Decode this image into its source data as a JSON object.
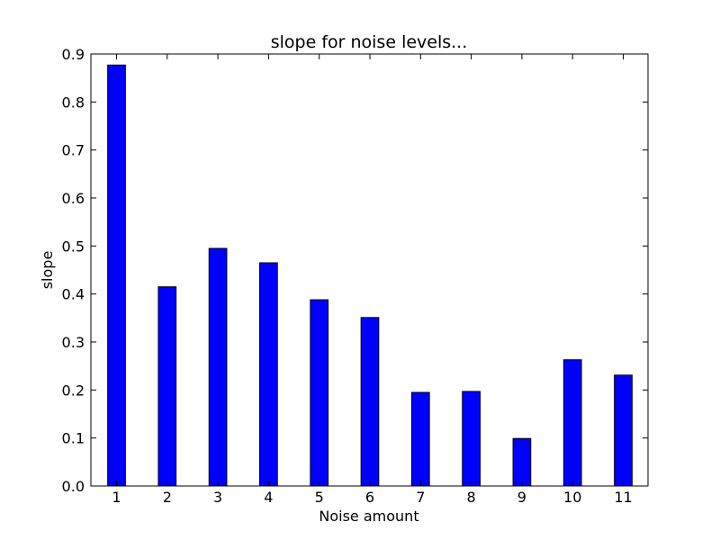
{
  "chart_data": {
    "type": "bar",
    "title": "slope for noise levels...",
    "xlabel": "Noise amount",
    "ylabel": "slope",
    "categories": [
      "1",
      "2",
      "3",
      "4",
      "5",
      "6",
      "7",
      "8",
      "9",
      "10",
      "11"
    ],
    "values": [
      0.877,
      0.415,
      0.495,
      0.465,
      0.388,
      0.351,
      0.195,
      0.197,
      0.099,
      0.263,
      0.231
    ],
    "ylim": [
      0,
      0.9
    ],
    "yticks": [
      "0.0",
      "0.1",
      "0.2",
      "0.3",
      "0.4",
      "0.5",
      "0.6",
      "0.7",
      "0.8",
      "0.9"
    ],
    "grid": false,
    "bar_color": "#0000ff",
    "edge_color": "#000000"
  }
}
